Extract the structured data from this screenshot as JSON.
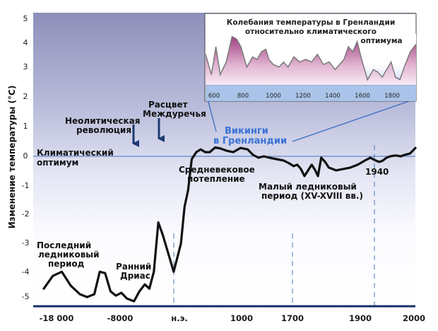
{
  "chart_data": [
    {
      "type": "line",
      "title": "",
      "ylabel": "Изменение температуры (°С)",
      "xlabel": "",
      "ylim": [
        -5.3,
        5
      ],
      "y_ticks": [
        "5",
        "4",
        "3",
        "2",
        "1",
        "0",
        "-1",
        "-2",
        "-3",
        "-4",
        "-5"
      ],
      "x_ticks": [
        "-18 000",
        "-8000",
        "н.э.",
        "1000",
        "1700",
        "1900",
        "2000"
      ],
      "points": [
        [
          0.0,
          -4.7
        ],
        [
          0.5,
          -4.25
        ],
        [
          1.0,
          -4.1
        ],
        [
          1.5,
          -4.6
        ],
        [
          2.0,
          -4.9
        ],
        [
          2.4,
          -5.0
        ],
        [
          2.8,
          -4.9
        ],
        [
          3.1,
          -4.1
        ],
        [
          3.4,
          -4.15
        ],
        [
          3.7,
          -4.8
        ],
        [
          4.0,
          -4.95
        ],
        [
          4.3,
          -4.85
        ],
        [
          4.6,
          -5.05
        ],
        [
          5.0,
          -5.15
        ],
        [
          5.3,
          -4.8
        ],
        [
          5.6,
          -4.55
        ],
        [
          5.85,
          -4.7
        ],
        [
          6.1,
          -4.1
        ],
        [
          6.35,
          -2.35
        ],
        [
          6.6,
          -2.8
        ],
        [
          6.9,
          -3.45
        ],
        [
          7.2,
          -4.1
        ],
        [
          7.4,
          -3.6
        ],
        [
          7.6,
          -3.1
        ],
        [
          7.8,
          -1.8
        ],
        [
          8.0,
          -1.2
        ],
        [
          8.2,
          -0.1
        ],
        [
          8.45,
          0.15
        ],
        [
          8.7,
          0.25
        ],
        [
          8.95,
          0.15
        ],
        [
          9.2,
          0.15
        ],
        [
          9.5,
          0.32
        ],
        [
          9.8,
          0.28
        ],
        [
          10.15,
          0.2
        ],
        [
          10.5,
          0.15
        ],
        [
          10.9,
          0.3
        ],
        [
          11.3,
          0.25
        ],
        [
          11.6,
          0.05
        ],
        [
          11.9,
          -0.05
        ],
        [
          12.2,
          0.0
        ],
        [
          12.5,
          -0.05
        ],
        [
          12.9,
          -0.1
        ],
        [
          13.3,
          -0.15
        ],
        [
          13.6,
          -0.25
        ],
        [
          13.85,
          -0.35
        ],
        [
          14.05,
          -0.3
        ],
        [
          14.25,
          -0.45
        ],
        [
          14.45,
          -0.7
        ],
        [
          14.65,
          -0.5
        ],
        [
          14.85,
          -0.3
        ],
        [
          15.05,
          -0.5
        ],
        [
          15.2,
          -0.7
        ],
        [
          15.38,
          -0.05
        ],
        [
          15.6,
          -0.2
        ],
        [
          15.8,
          -0.4
        ],
        [
          16.2,
          -0.5
        ],
        [
          16.6,
          -0.45
        ],
        [
          17.0,
          -0.4
        ],
        [
          17.4,
          -0.3
        ],
        [
          17.8,
          -0.15
        ],
        [
          18.1,
          -0.05
        ],
        [
          18.4,
          -0.15
        ],
        [
          18.6,
          -0.2
        ],
        [
          18.8,
          -0.15
        ],
        [
          19.0,
          -0.05
        ],
        [
          19.2,
          0.0
        ],
        [
          19.5,
          0.03
        ],
        [
          19.8,
          0.0
        ],
        [
          20.0,
          0.05
        ],
        [
          20.3,
          0.1
        ],
        [
          20.6,
          0.3
        ]
      ],
      "annotations": [
        "Климатический",
        "оптимум",
        "Неолитическая",
        "революция",
        "Расцвет",
        "Междуречья",
        "Викинги",
        "в Гренландии",
        "Средневековое",
        "потепление",
        "Малый ледниковый",
        "период (XV-XVIII вв.)",
        "1940",
        "Последний",
        "ледниковый",
        "период",
        "Ранний",
        "Дриас"
      ]
    },
    {
      "type": "area",
      "title": "Колебания температуры в Гренландии относительно климатического оптимума",
      "x_ticks": [
        "600",
        "800",
        "1000",
        "1200",
        "1400",
        "1600",
        "1800"
      ],
      "xlim": [
        560,
        1990
      ],
      "points": [
        [
          560,
          0.6
        ],
        [
          600,
          0.2
        ],
        [
          630,
          0.75
        ],
        [
          660,
          0.2
        ],
        [
          700,
          0.45
        ],
        [
          740,
          0.95
        ],
        [
          770,
          0.9
        ],
        [
          800,
          0.75
        ],
        [
          840,
          0.35
        ],
        [
          880,
          0.55
        ],
        [
          910,
          0.5
        ],
        [
          940,
          0.65
        ],
        [
          970,
          0.7
        ],
        [
          990,
          0.5
        ],
        [
          1020,
          0.4
        ],
        [
          1060,
          0.35
        ],
        [
          1090,
          0.45
        ],
        [
          1120,
          0.35
        ],
        [
          1160,
          0.55
        ],
        [
          1200,
          0.45
        ],
        [
          1240,
          0.5
        ],
        [
          1280,
          0.45
        ],
        [
          1320,
          0.6
        ],
        [
          1360,
          0.4
        ],
        [
          1400,
          0.45
        ],
        [
          1440,
          0.3
        ],
        [
          1470,
          0.4
        ],
        [
          1500,
          0.5
        ],
        [
          1530,
          0.75
        ],
        [
          1560,
          0.65
        ],
        [
          1590,
          0.85
        ],
        [
          1620,
          0.5
        ],
        [
          1660,
          0.1
        ],
        [
          1700,
          0.3
        ],
        [
          1730,
          0.25
        ],
        [
          1760,
          0.15
        ],
        [
          1790,
          0.3
        ],
        [
          1820,
          0.45
        ],
        [
          1850,
          0.15
        ],
        [
          1880,
          0.1
        ],
        [
          1910,
          0.35
        ],
        [
          1950,
          0.65
        ],
        [
          1990,
          0.8
        ]
      ]
    }
  ]
}
